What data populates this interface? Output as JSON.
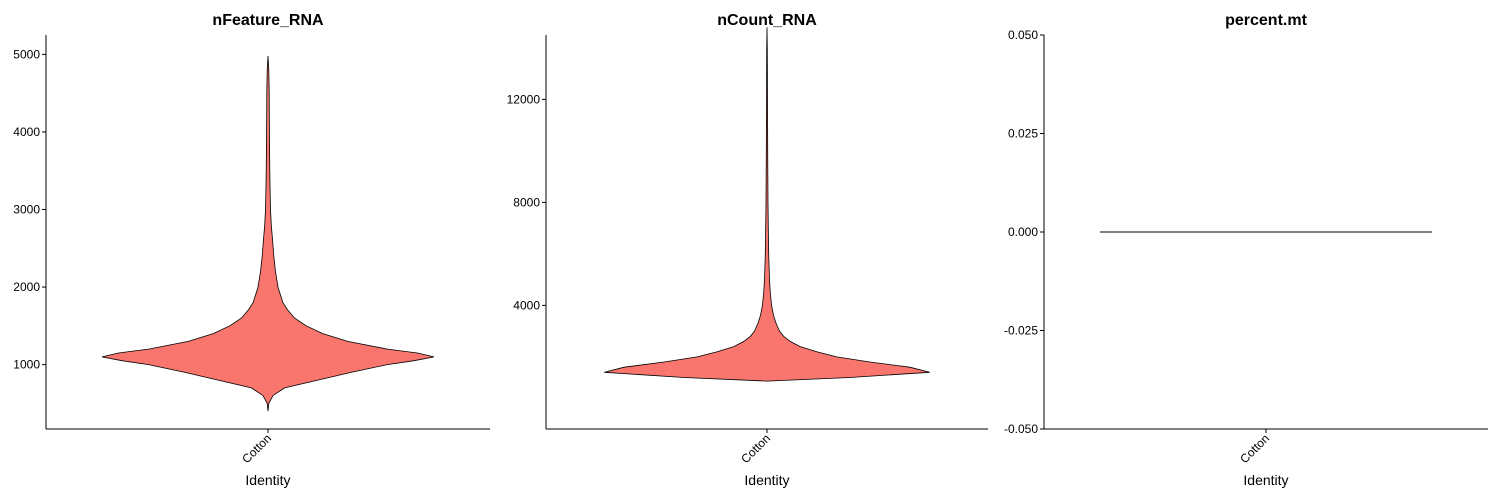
{
  "chart_data": [
    {
      "type": "violin",
      "title": "nFeature_RNA",
      "xlabel": "Identity",
      "ylabel": "",
      "categories": [
        "Cotton"
      ],
      "ylim": [
        170,
        5250
      ],
      "yticks": [
        "1000",
        "2000",
        "3000",
        "4000",
        "5000"
      ],
      "color": "#F8766D",
      "density": {
        "y": [
          400,
          500,
          600,
          700,
          800,
          900,
          1000,
          1050,
          1100,
          1150,
          1200,
          1300,
          1400,
          1500,
          1600,
          1700,
          1800,
          1900,
          2000,
          2200,
          2400,
          2600,
          2800,
          3000,
          3300,
          3600,
          3900,
          4200,
          4500,
          4800,
          4980
        ],
        "half_width": [
          0.0,
          0.005,
          0.03,
          0.1,
          0.3,
          0.5,
          0.72,
          0.88,
          1.0,
          0.9,
          0.72,
          0.48,
          0.33,
          0.23,
          0.16,
          0.12,
          0.09,
          0.075,
          0.06,
          0.045,
          0.035,
          0.028,
          0.02,
          0.015,
          0.012,
          0.01,
          0.009,
          0.008,
          0.007,
          0.005,
          0.0
        ]
      }
    },
    {
      "type": "violin",
      "title": "nCount_RNA",
      "xlabel": "Identity",
      "ylabel": "",
      "categories": [
        "Cotton"
      ],
      "ylim": [
        -800,
        14500
      ],
      "yticks": [
        "4000",
        "8000",
        "12000"
      ],
      "color": "#F8766D",
      "density": {
        "y": [
          1060,
          1200,
          1400,
          1600,
          1800,
          2000,
          2200,
          2400,
          2600,
          2800,
          3000,
          3300,
          3600,
          4000,
          4500,
          5000,
          6000,
          7000,
          8000,
          10000,
          12000,
          14000,
          14800
        ],
        "half_width": [
          0.0,
          0.5,
          0.98,
          0.86,
          0.62,
          0.42,
          0.3,
          0.2,
          0.14,
          0.1,
          0.075,
          0.055,
          0.04,
          0.028,
          0.02,
          0.015,
          0.01,
          0.008,
          0.006,
          0.004,
          0.003,
          0.002,
          0.0
        ]
      }
    },
    {
      "type": "violin",
      "title": "percent.mt",
      "xlabel": "Identity",
      "ylabel": "",
      "categories": [
        "Cotton"
      ],
      "ylim": [
        -0.05,
        0.05
      ],
      "yticks": [
        "-0.050",
        "-0.025",
        "0.000",
        "0.025",
        "0.050"
      ],
      "color": "#F8766D",
      "values_constant": 0.0
    }
  ]
}
